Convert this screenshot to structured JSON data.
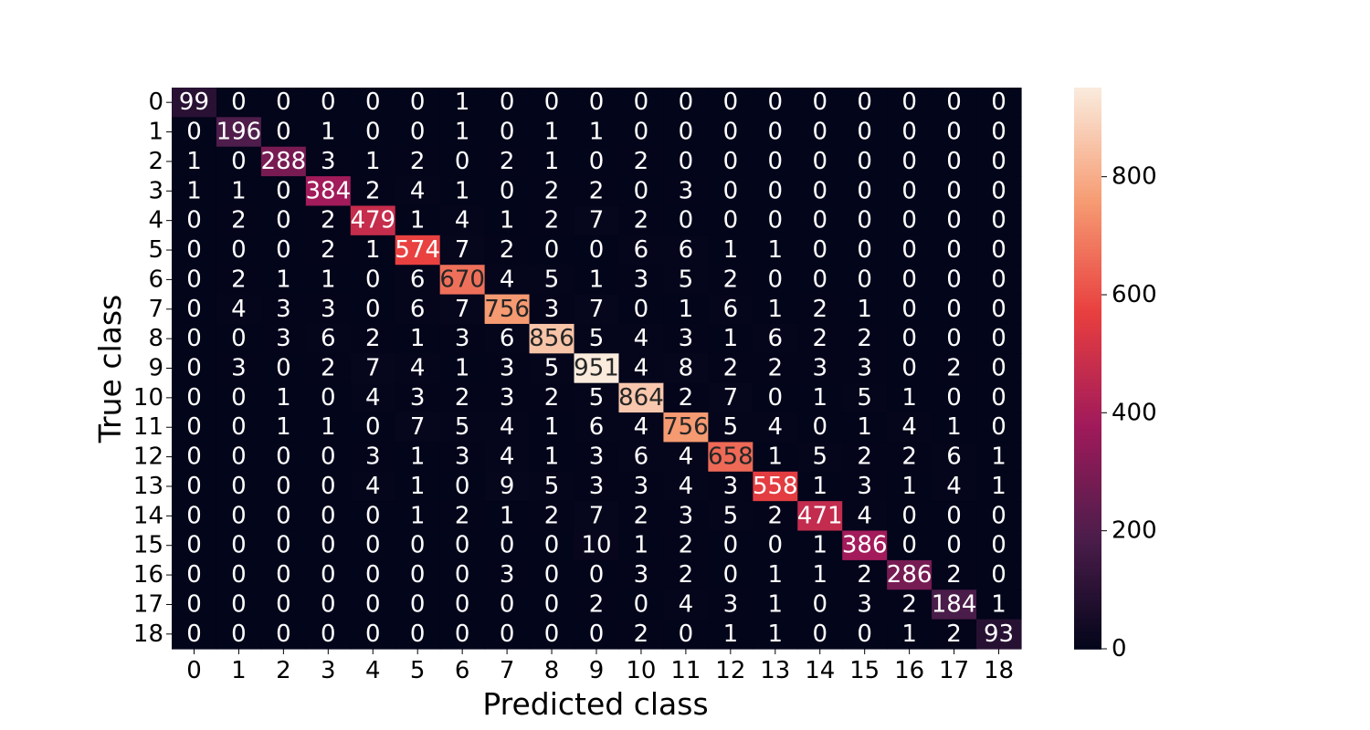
{
  "chart_data": {
    "type": "heatmap",
    "title": "",
    "xlabel": "Predicted class",
    "ylabel": "True class",
    "x_categories": [
      "0",
      "1",
      "2",
      "3",
      "4",
      "5",
      "6",
      "7",
      "8",
      "9",
      "10",
      "11",
      "12",
      "13",
      "14",
      "15",
      "16",
      "17",
      "18"
    ],
    "y_categories": [
      "0",
      "1",
      "2",
      "3",
      "4",
      "5",
      "6",
      "7",
      "8",
      "9",
      "10",
      "11",
      "12",
      "13",
      "14",
      "15",
      "16",
      "17",
      "18"
    ],
    "matrix": [
      [
        99,
        0,
        0,
        0,
        0,
        0,
        1,
        0,
        0,
        0,
        0,
        0,
        0,
        0,
        0,
        0,
        0,
        0,
        0
      ],
      [
        0,
        196,
        0,
        1,
        0,
        0,
        1,
        0,
        1,
        1,
        0,
        0,
        0,
        0,
        0,
        0,
        0,
        0,
        0
      ],
      [
        1,
        0,
        288,
        3,
        1,
        2,
        0,
        2,
        1,
        0,
        2,
        0,
        0,
        0,
        0,
        0,
        0,
        0,
        0
      ],
      [
        1,
        1,
        0,
        384,
        2,
        4,
        1,
        0,
        2,
        2,
        0,
        3,
        0,
        0,
        0,
        0,
        0,
        0,
        0
      ],
      [
        0,
        2,
        0,
        2,
        479,
        1,
        4,
        1,
        2,
        7,
        2,
        0,
        0,
        0,
        0,
        0,
        0,
        0,
        0
      ],
      [
        0,
        0,
        0,
        2,
        1,
        574,
        7,
        2,
        0,
        0,
        6,
        6,
        1,
        1,
        0,
        0,
        0,
        0,
        0
      ],
      [
        0,
        2,
        1,
        1,
        0,
        6,
        670,
        4,
        5,
        1,
        3,
        5,
        2,
        0,
        0,
        0,
        0,
        0,
        0
      ],
      [
        0,
        4,
        3,
        3,
        0,
        6,
        7,
        756,
        3,
        7,
        0,
        1,
        6,
        1,
        2,
        1,
        0,
        0,
        0
      ],
      [
        0,
        0,
        3,
        6,
        2,
        1,
        3,
        6,
        856,
        5,
        4,
        3,
        1,
        6,
        2,
        2,
        0,
        0,
        0
      ],
      [
        0,
        3,
        0,
        2,
        7,
        4,
        1,
        3,
        5,
        951,
        4,
        8,
        2,
        2,
        3,
        3,
        0,
        2,
        0
      ],
      [
        0,
        0,
        1,
        0,
        4,
        3,
        2,
        3,
        2,
        5,
        864,
        2,
        7,
        0,
        1,
        5,
        1,
        0,
        0
      ],
      [
        0,
        0,
        1,
        1,
        0,
        7,
        5,
        4,
        1,
        6,
        4,
        756,
        5,
        4,
        0,
        1,
        4,
        1,
        0
      ],
      [
        0,
        0,
        0,
        0,
        3,
        1,
        3,
        4,
        1,
        3,
        6,
        4,
        658,
        1,
        5,
        2,
        2,
        6,
        1
      ],
      [
        0,
        0,
        0,
        0,
        4,
        1,
        0,
        9,
        5,
        3,
        3,
        4,
        3,
        558,
        1,
        3,
        1,
        4,
        1
      ],
      [
        0,
        0,
        0,
        0,
        0,
        1,
        2,
        1,
        2,
        7,
        2,
        3,
        5,
        2,
        471,
        4,
        0,
        0,
        0
      ],
      [
        0,
        0,
        0,
        0,
        0,
        0,
        0,
        0,
        0,
        10,
        1,
        2,
        0,
        0,
        1,
        386,
        0,
        0,
        0
      ],
      [
        0,
        0,
        0,
        0,
        0,
        0,
        0,
        3,
        0,
        0,
        3,
        2,
        0,
        1,
        1,
        2,
        286,
        2,
        0
      ],
      [
        0,
        0,
        0,
        0,
        0,
        0,
        0,
        0,
        0,
        2,
        0,
        4,
        3,
        1,
        0,
        3,
        2,
        184,
        1
      ],
      [
        0,
        0,
        0,
        0,
        0,
        0,
        0,
        0,
        0,
        0,
        2,
        0,
        1,
        1,
        0,
        0,
        1,
        2,
        93
      ]
    ],
    "colorbar": {
      "vmin": 0,
      "vmax": 951,
      "ticks": [
        0,
        200,
        400,
        600,
        800
      ],
      "colormap": "rocket"
    },
    "colormap_stops": [
      "#03051a",
      "#4c1d4b",
      "#a11a5b",
      "#e83f3f",
      "#f69c73",
      "#faebdd"
    ],
    "grid": false,
    "legend": "colorbar-right"
  }
}
